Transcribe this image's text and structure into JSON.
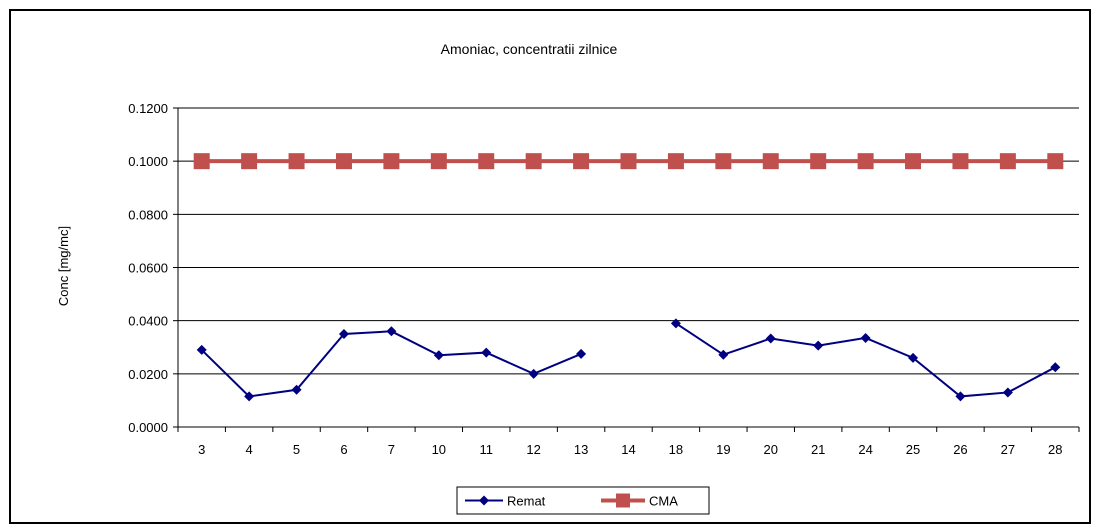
{
  "chart_data": {
    "type": "line",
    "title": "Amoniac, concentratii zilnice",
    "xlabel": "",
    "ylabel": "Conc [mg/mc]",
    "categories": [
      "3",
      "4",
      "5",
      "6",
      "7",
      "10",
      "11",
      "12",
      "13",
      "14",
      "18",
      "19",
      "20",
      "21",
      "24",
      "25",
      "26",
      "27",
      "28"
    ],
    "ylim": [
      0,
      0.12
    ],
    "yticks": [
      "0.0000",
      "0.0200",
      "0.0400",
      "0.0600",
      "0.0800",
      "0.1000",
      "0.1200"
    ],
    "grid": "horizontal",
    "legend_position": "bottom",
    "series": [
      {
        "name": "Remat",
        "color": "#000080",
        "marker": "diamond",
        "values": [
          0.029,
          0.0115,
          0.014,
          0.035,
          0.036,
          0.027,
          0.028,
          0.02,
          0.0275,
          null,
          0.039,
          0.0272,
          0.0333,
          0.0306,
          0.0335,
          0.026,
          0.0115,
          0.013,
          0.0225
        ]
      },
      {
        "name": "CMA",
        "color": "#C0504D",
        "marker": "square",
        "values": [
          0.1,
          0.1,
          0.1,
          0.1,
          0.1,
          0.1,
          0.1,
          0.1,
          0.1,
          0.1,
          0.1,
          0.1,
          0.1,
          0.1,
          0.1,
          0.1,
          0.1,
          0.1,
          0.1
        ]
      }
    ]
  }
}
